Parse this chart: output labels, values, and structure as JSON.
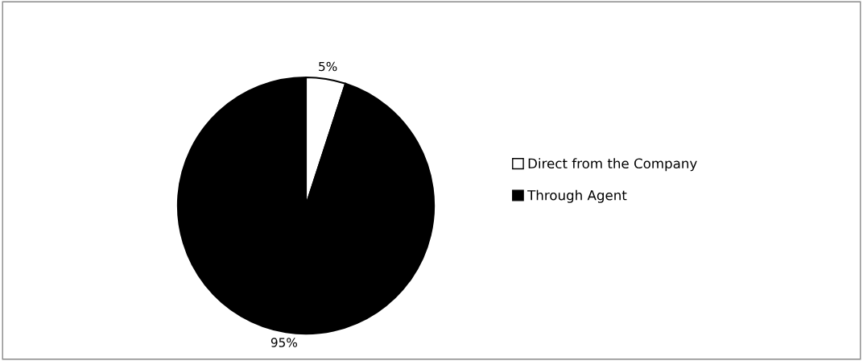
{
  "chart_data": {
    "type": "pie",
    "categories": [
      "Direct from the Company",
      "Through Agent"
    ],
    "values": [
      5,
      95
    ],
    "colors": [
      "#ffffff",
      "#000000"
    ],
    "value_labels": [
      "5%",
      "95%"
    ],
    "legend": "right"
  }
}
